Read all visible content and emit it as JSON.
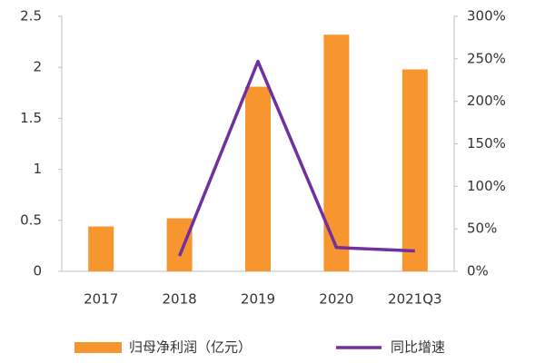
{
  "chart_data": {
    "type": "bar",
    "categories": [
      "2017",
      "2018",
      "2019",
      "2020",
      "2021Q3"
    ],
    "series": [
      {
        "name": "归母净利润（亿元）",
        "color": "#f7962f",
        "values": [
          0.44,
          0.52,
          1.81,
          2.32,
          1.98
        ]
      },
      {
        "name": "同比增速",
        "color": "#7030a0",
        "type": "line",
        "axis": "y2",
        "values": [
          null,
          18,
          247,
          28,
          24
        ]
      }
    ],
    "ylim": [
      0,
      2.5
    ],
    "yticks": [
      0,
      0.5,
      1,
      1.5,
      2,
      2.5
    ],
    "y2lim": [
      0,
      300
    ],
    "y2ticks": [
      {
        "value": 0,
        "label": "0%"
      },
      {
        "value": 50,
        "label": "50%"
      },
      {
        "value": 100,
        "label": "100%"
      },
      {
        "value": 150,
        "label": "150%"
      },
      {
        "value": 200,
        "label": "200%"
      },
      {
        "value": 250,
        "label": "250%"
      },
      {
        "value": 300,
        "label": "300%"
      }
    ],
    "grid": false,
    "legend": "bottom"
  }
}
